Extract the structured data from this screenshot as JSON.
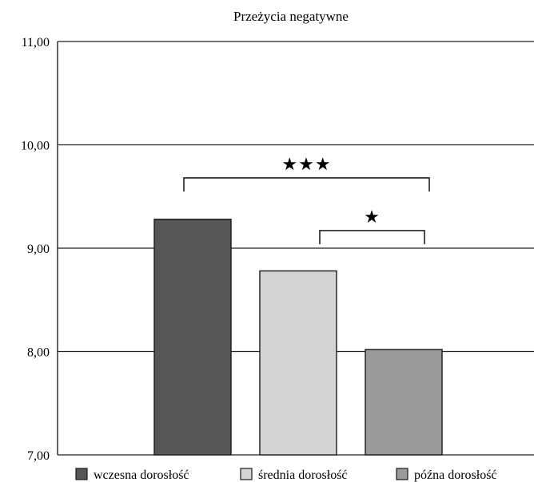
{
  "chart_data": {
    "type": "bar",
    "title": "Przeżycia negatywne",
    "xlabel": "",
    "ylabel": "",
    "ylim": [
      7,
      11
    ],
    "yticks": [
      "7,00",
      "8,00",
      "9,00",
      "10,00",
      "11,00"
    ],
    "grid": true,
    "legend_position": "bottom",
    "categories": [
      "wczesna dorosłość",
      "średnia dorosłość",
      "późna dorosłość"
    ],
    "values": [
      9.28,
      8.78,
      8.02
    ],
    "colors": [
      "#565656",
      "#d4d4d4",
      "#9a9a9a"
    ],
    "annotations": [
      {
        "text": "★★★",
        "from": "wczesna dorosłość",
        "to": "późna dorosłość",
        "level": 9.68
      },
      {
        "text": "★",
        "from": "średnia dorosłość",
        "to": "późna dorosłość",
        "level": 9.17
      }
    ]
  }
}
